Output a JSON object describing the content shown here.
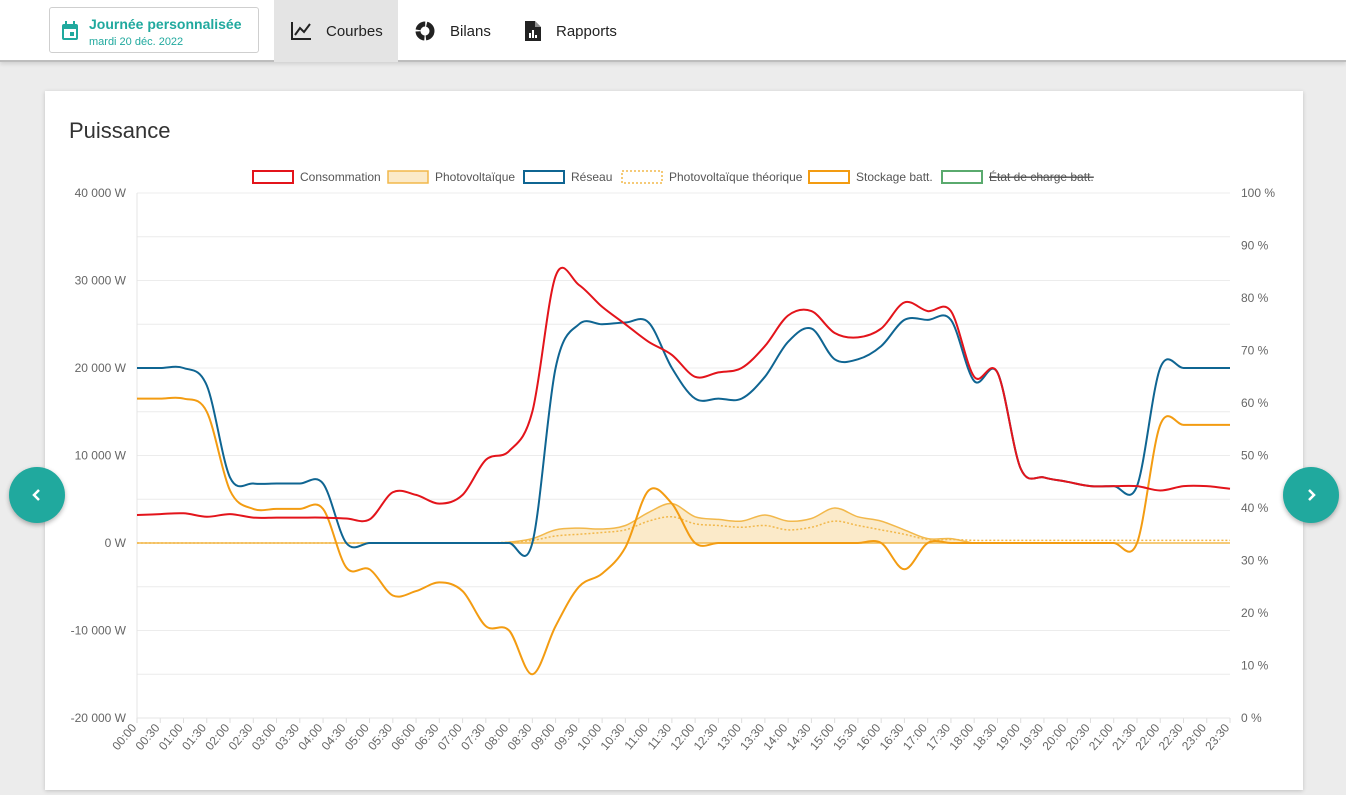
{
  "header": {
    "date_title": "Journée personnalisée",
    "date_sub": "mardi 20 déc. 2022",
    "tabs": [
      {
        "label": "Courbes",
        "icon": "line-chart-icon",
        "active": true
      },
      {
        "label": "Bilans",
        "icon": "donut-chart-icon",
        "active": false
      },
      {
        "label": "Rapports",
        "icon": "report-file-icon",
        "active": false
      }
    ]
  },
  "card": {
    "title": "Puissance"
  },
  "colors": {
    "accent": "#20a99e",
    "consommation": "#e3141b",
    "photovoltaique": "#f2b84b",
    "reseau": "#0f6592",
    "pv_theorique": "#f2b84b",
    "stockage": "#f39c12",
    "etat_charge": "#5aaa6e"
  },
  "chart_data": {
    "type": "line",
    "title": "Puissance",
    "legend": [
      {
        "name": "Consommation",
        "style": "solid",
        "color": "#e3141b",
        "hidden": false
      },
      {
        "name": "Photovoltaïque",
        "style": "area",
        "color": "#f2b84b",
        "hidden": false
      },
      {
        "name": "Réseau",
        "style": "solid",
        "color": "#0f6592",
        "hidden": false
      },
      {
        "name": "Photovoltaïque théorique",
        "style": "dotted",
        "color": "#f2b84b",
        "hidden": false
      },
      {
        "name": "Stockage batt.",
        "style": "solid",
        "color": "#f39c12",
        "hidden": false
      },
      {
        "name": "État de charge batt.",
        "style": "solid",
        "color": "#5aaa6e",
        "hidden": true
      }
    ],
    "legend_position": "top",
    "ylim": [
      -20000,
      40000
    ],
    "y2lim": [
      0,
      100
    ],
    "yticks": [
      "-20 000 W",
      "-10 000 W",
      "0 W",
      "10 000 W",
      "20 000 W",
      "30 000 W",
      "40 000 W"
    ],
    "y2ticks": [
      "0 %",
      "10 %",
      "20 %",
      "30 %",
      "40 %",
      "50 %",
      "60 %",
      "70 %",
      "80 %",
      "90 %",
      "100 %"
    ],
    "x": [
      "00:00",
      "00:30",
      "01:00",
      "01:30",
      "02:00",
      "02:30",
      "03:00",
      "03:30",
      "04:00",
      "04:30",
      "05:00",
      "05:30",
      "06:00",
      "06:30",
      "07:00",
      "07:30",
      "08:00",
      "08:30",
      "09:00",
      "09:30",
      "10:00",
      "10:30",
      "11:00",
      "11:30",
      "12:00",
      "12:30",
      "13:00",
      "13:30",
      "14:00",
      "14:30",
      "15:00",
      "15:30",
      "16:00",
      "16:30",
      "17:00",
      "17:30",
      "18:00",
      "18:30",
      "19:00",
      "19:30",
      "20:00",
      "20:30",
      "21:00",
      "21:30",
      "22:00",
      "22:30",
      "23:00",
      "23:30"
    ],
    "series": [
      {
        "name": "Consommation",
        "values": [
          3200,
          3300,
          3400,
          3000,
          3300,
          2900,
          2900,
          2900,
          2900,
          2800,
          2700,
          5800,
          5500,
          4500,
          5500,
          9500,
          10500,
          15000,
          30500,
          29500,
          27000,
          25000,
          23000,
          21500,
          19000,
          19500,
          20000,
          22500,
          26000,
          26500,
          24000,
          23500,
          24500,
          27500,
          26500,
          26500,
          19000,
          19500,
          8500,
          7500,
          7000,
          6500,
          6500,
          6500,
          6000,
          6500,
          6500,
          6200
        ]
      },
      {
        "name": "Photovoltaïque",
        "values": [
          0,
          0,
          0,
          0,
          0,
          0,
          0,
          0,
          0,
          0,
          0,
          0,
          0,
          0,
          0,
          0,
          100,
          500,
          1500,
          1700,
          1600,
          2000,
          3500,
          4500,
          3000,
          2700,
          2500,
          3200,
          2500,
          2800,
          4000,
          3000,
          2500,
          1500,
          500,
          500,
          0,
          0,
          0,
          0,
          0,
          0,
          0,
          0,
          0,
          0,
          0,
          0
        ]
      },
      {
        "name": "Réseau",
        "values": [
          20000,
          20000,
          20000,
          18000,
          7500,
          6800,
          6800,
          6800,
          6800,
          0,
          0,
          0,
          0,
          0,
          0,
          0,
          0,
          0,
          20000,
          25000,
          25000,
          25200,
          25200,
          20000,
          16500,
          16500,
          16500,
          19000,
          23000,
          24500,
          21000,
          21000,
          22500,
          25500,
          25500,
          25500,
          18500,
          19500,
          8500,
          7500,
          7000,
          6500,
          6500,
          6500,
          20000,
          20000,
          20000,
          20000
        ]
      },
      {
        "name": "Photovoltaïque théorique",
        "values": [
          0,
          0,
          0,
          0,
          0,
          0,
          0,
          0,
          0,
          0,
          0,
          0,
          0,
          0,
          0,
          0,
          100,
          300,
          800,
          1000,
          1200,
          1500,
          2500,
          3000,
          2200,
          2000,
          1800,
          2000,
          1500,
          1800,
          2500,
          2000,
          1500,
          1000,
          400,
          400,
          300,
          300,
          300,
          300,
          300,
          300,
          300,
          300,
          300,
          300,
          300,
          300
        ]
      },
      {
        "name": "Stockage batt.",
        "values": [
          16500,
          16500,
          16500,
          15000,
          6000,
          3900,
          3900,
          3900,
          3900,
          -2800,
          -3000,
          -6000,
          -5500,
          -4500,
          -5500,
          -9500,
          -10000,
          -15000,
          -9500,
          -5000,
          -3500,
          -500,
          6000,
          4500,
          0,
          0,
          0,
          0,
          0,
          0,
          0,
          0,
          0,
          -3000,
          0,
          0,
          0,
          0,
          0,
          0,
          0,
          0,
          0,
          0,
          13500,
          13500,
          13500,
          13500
        ]
      }
    ]
  }
}
